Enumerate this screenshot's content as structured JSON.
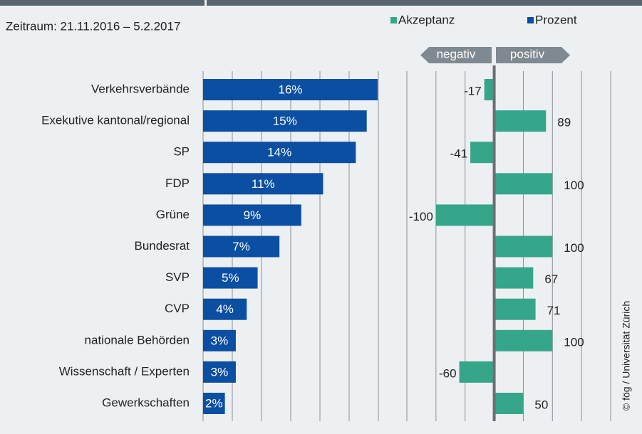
{
  "chart_data": {
    "type": "bar",
    "subtitle": "Zeitraum: 21.11.2016 – 5.2.2017",
    "categories": [
      "Verkehrsverbände",
      "Exekutive kantonal/regional",
      "SP",
      "FDP",
      "Grüne",
      "Bundesrat",
      "SVP",
      "CVP",
      "nationale Behörden",
      "Wissenschaft / Experten",
      "Gewerkschaften"
    ],
    "series": [
      {
        "name": "Akzeptanz",
        "color": "#36a68b",
        "axis": "x2",
        "values": [
          -17,
          89,
          -41,
          100,
          -100,
          100,
          67,
          71,
          100,
          -60,
          50
        ]
      },
      {
        "name": "Prozent",
        "color": "#0b4fa3",
        "values": [
          16,
          15,
          14,
          11,
          9,
          7,
          5,
          4,
          3,
          3,
          2
        ],
        "value_labels": [
          "16%",
          "15%",
          "14%",
          "11%",
          "9%",
          "7%",
          "5%",
          "4%",
          "3%",
          "3%",
          "2%"
        ]
      }
    ],
    "xlim": [
      0,
      16
    ],
    "x2lim": [
      -150,
      200
    ],
    "x2ticks": [
      -150,
      -100,
      -50,
      0,
      50,
      100,
      150,
      200
    ],
    "grid": true,
    "direction_labels": [
      "negativ",
      "positiv"
    ],
    "credit": "© fög / Universität Zürich"
  }
}
